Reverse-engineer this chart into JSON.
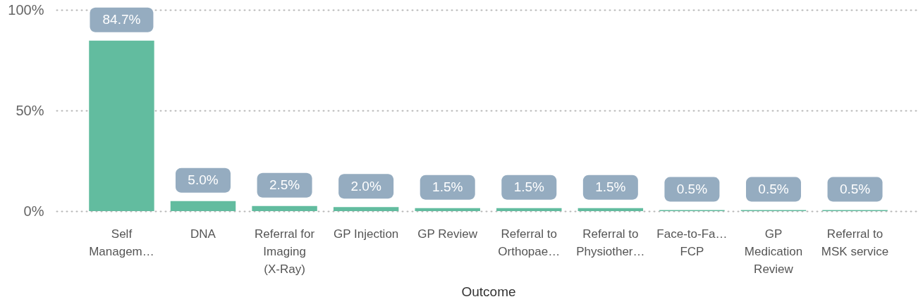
{
  "chart_data": {
    "type": "bar",
    "xlabel": "Outcome",
    "categories": [
      "Self Managem…",
      "DNA",
      "Referral for Imaging (X-Ray)",
      "GP Injection",
      "GP Review",
      "Referral to Orthopae…",
      "Referral to Physiother…",
      "Face-to-Fa… FCP",
      "GP Medication Review",
      "Referral to MSK service"
    ],
    "values": [
      84.7,
      5.0,
      2.5,
      2.0,
      1.5,
      1.5,
      1.5,
      0.5,
      0.5,
      0.5
    ],
    "value_labels": [
      "84.7%",
      "5.0%",
      "2.5%",
      "2.0%",
      "1.5%",
      "1.5%",
      "1.5%",
      "0.5%",
      "0.5%",
      "0.5%"
    ],
    "color": "#62bc9f",
    "ylim": [
      0,
      100
    ],
    "yticks": [
      {
        "value": 0,
        "label": "0%"
      },
      {
        "value": 50,
        "label": "50%"
      },
      {
        "value": 100,
        "label": "100%"
      }
    ],
    "grid": "y"
  }
}
